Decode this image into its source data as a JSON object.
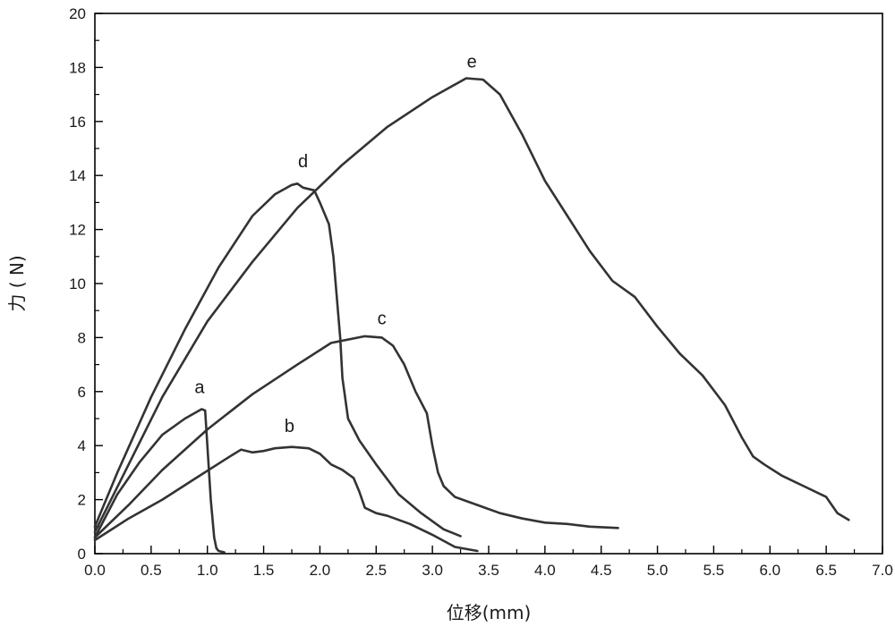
{
  "chart_data": {
    "type": "line",
    "title": "",
    "xlabel": "位移(mm)",
    "ylabel": "力 ( N)",
    "xlim": [
      0,
      7
    ],
    "ylim": [
      0,
      20
    ],
    "x_ticks": [
      "0.0",
      "0.5",
      "1.0",
      "1.5",
      "2.0",
      "2.5",
      "3.0",
      "3.5",
      "4.0",
      "4.5",
      "5.0",
      "5.5",
      "6.0",
      "6.5",
      "7.0"
    ],
    "y_ticks": [
      "0",
      "2",
      "4",
      "6",
      "8",
      "10",
      "12",
      "14",
      "16",
      "18",
      "20"
    ],
    "grid": false,
    "colors": {
      "line": "#333333",
      "axis": "#000000",
      "text": "#1a1a1a"
    },
    "series": [
      {
        "name": "a",
        "label_at": [
          0.93,
          5.95
        ],
        "x": [
          0,
          0.2,
          0.4,
          0.6,
          0.8,
          0.95,
          0.98,
          1.0,
          1.03,
          1.06,
          1.08,
          1.1,
          1.15
        ],
        "y": [
          0.6,
          2.2,
          3.4,
          4.4,
          5.0,
          5.35,
          5.3,
          4.0,
          2.0,
          0.6,
          0.2,
          0.1,
          0.05
        ]
      },
      {
        "name": "b",
        "label_at": [
          1.73,
          4.5
        ],
        "x": [
          0,
          0.3,
          0.6,
          0.9,
          1.2,
          1.3,
          1.4,
          1.5,
          1.6,
          1.75,
          1.9,
          2.0,
          2.1,
          2.2,
          2.3,
          2.35,
          2.4,
          2.5,
          2.6,
          2.8,
          3.0,
          3.2,
          3.4
        ],
        "y": [
          0.5,
          1.3,
          2.0,
          2.8,
          3.6,
          3.85,
          3.75,
          3.8,
          3.9,
          3.95,
          3.9,
          3.7,
          3.3,
          3.1,
          2.8,
          2.3,
          1.7,
          1.5,
          1.4,
          1.1,
          0.7,
          0.25,
          0.1
        ]
      },
      {
        "name": "c",
        "label_at": [
          2.55,
          8.5
        ],
        "x": [
          0,
          0.3,
          0.6,
          1.0,
          1.4,
          1.8,
          2.1,
          2.4,
          2.55,
          2.65,
          2.75,
          2.85,
          2.95,
          3.0,
          3.05,
          3.1,
          3.2,
          3.4,
          3.6,
          3.8,
          4.0,
          4.2,
          4.4,
          4.65
        ],
        "y": [
          0.6,
          1.8,
          3.1,
          4.6,
          5.9,
          7.0,
          7.8,
          8.05,
          8.0,
          7.7,
          7.0,
          6.0,
          5.2,
          4.0,
          3.0,
          2.5,
          2.1,
          1.8,
          1.5,
          1.3,
          1.15,
          1.1,
          1.0,
          0.95
        ]
      },
      {
        "name": "d",
        "label_at": [
          1.85,
          14.3
        ],
        "x": [
          0,
          0.2,
          0.5,
          0.8,
          1.1,
          1.4,
          1.6,
          1.75,
          1.8,
          1.85,
          1.95,
          2.0,
          2.08,
          2.12,
          2.15,
          2.18,
          2.2,
          2.25,
          2.35,
          2.5,
          2.7,
          2.9,
          3.1,
          3.25
        ],
        "y": [
          1.0,
          3.0,
          5.8,
          8.3,
          10.6,
          12.5,
          13.3,
          13.65,
          13.7,
          13.55,
          13.45,
          13.0,
          12.2,
          11.0,
          9.5,
          8.0,
          6.5,
          5.0,
          4.2,
          3.3,
          2.2,
          1.5,
          0.9,
          0.65
        ]
      },
      {
        "name": "e",
        "label_at": [
          3.35,
          18.0
        ],
        "x": [
          0,
          0.3,
          0.6,
          1.0,
          1.4,
          1.8,
          2.2,
          2.6,
          3.0,
          3.3,
          3.45,
          3.6,
          3.8,
          4.0,
          4.2,
          4.4,
          4.6,
          4.8,
          5.0,
          5.2,
          5.4,
          5.6,
          5.75,
          5.85,
          5.95,
          6.1,
          6.3,
          6.5,
          6.6,
          6.7
        ],
        "y": [
          0.8,
          3.3,
          5.8,
          8.6,
          10.8,
          12.8,
          14.4,
          15.8,
          16.9,
          17.6,
          17.55,
          17.0,
          15.5,
          13.8,
          12.5,
          11.2,
          10.1,
          9.5,
          8.4,
          7.4,
          6.6,
          5.5,
          4.3,
          3.6,
          3.3,
          2.9,
          2.5,
          2.1,
          1.5,
          1.25
        ]
      }
    ]
  }
}
